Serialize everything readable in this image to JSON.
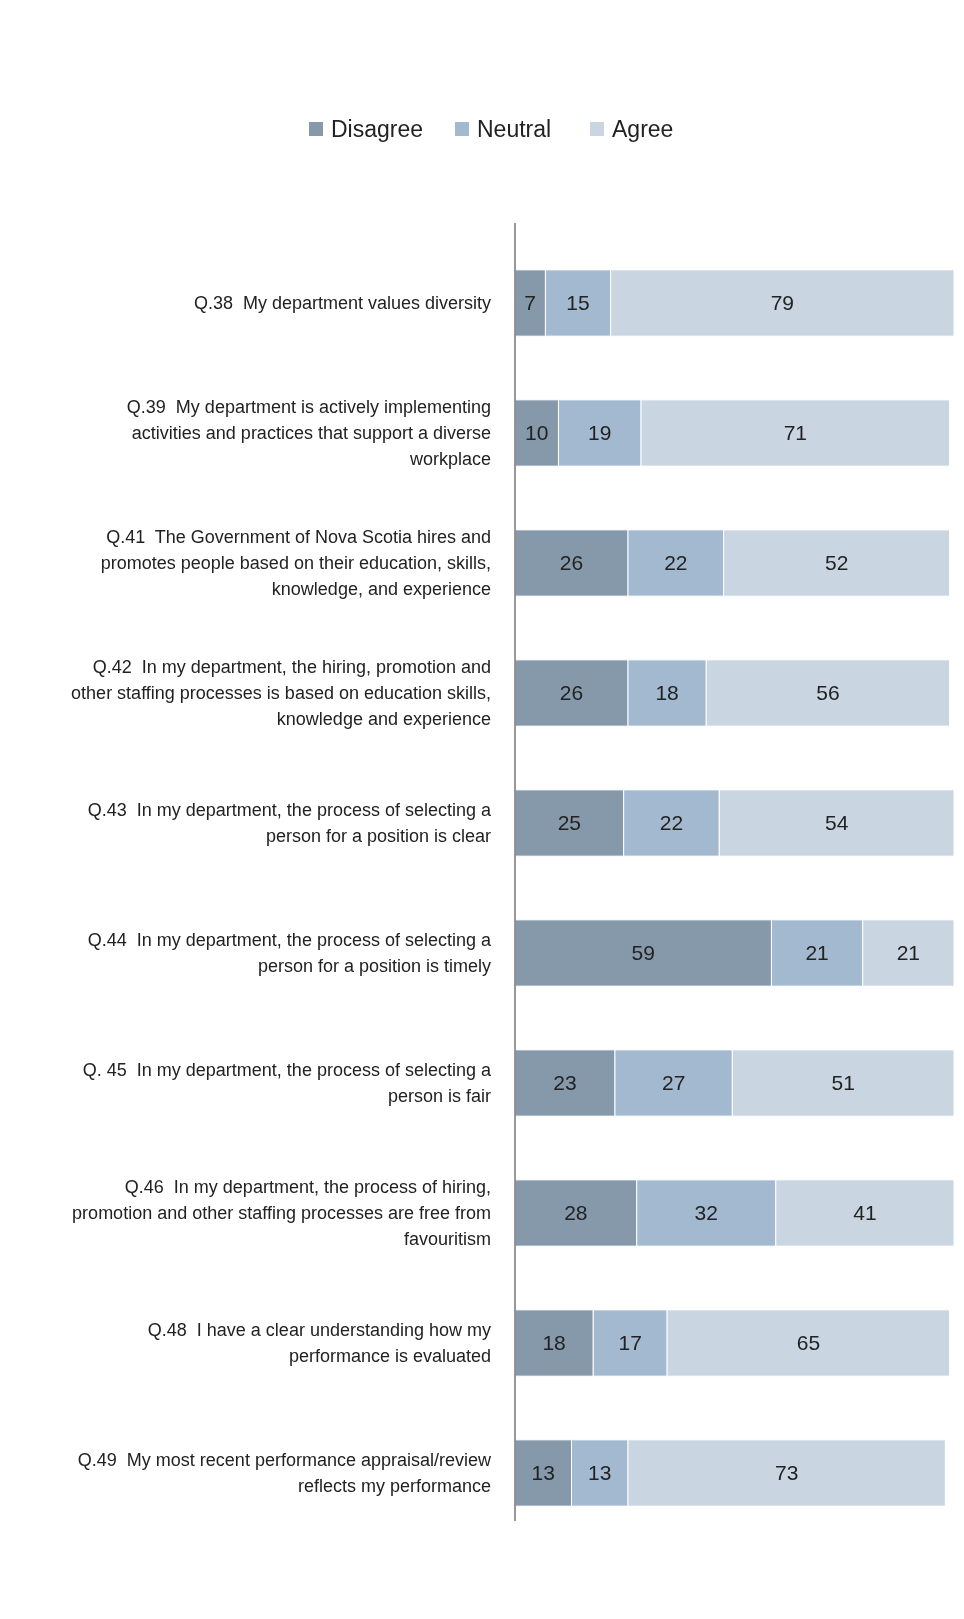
{
  "chart_data": {
    "type": "bar",
    "orientation": "horizontal",
    "stacked": true,
    "data_labels": true,
    "legend": "top",
    "categories": [
      "Q.38  My department values diversity",
      "Q.39  My department is actively implementing activities and practices that support a diverse workplace",
      "Q.41  The Government of Nova Scotia hires and promotes people based on their education, skills, knowledge, and experience",
      "Q.42  In my department, the hiring, promotion and other staffing processes is based on education skills, knowledge and experience",
      "Q.43  In my department, the process of selecting a person for a position is clear",
      "Q.44  In my department, the process of selecting a person for a position is timely",
      "Q. 45  In my department, the process of selecting a person is fair",
      "Q.46  In my department, the process of hiring, promotion and other staffing processes are free from favouritism",
      "Q.48  I have a clear understanding how my performance is evaluated",
      "Q.49  My most recent performance appraisal/review reflects my performance"
    ],
    "series": [
      {
        "name": "Disagree",
        "color": "#8699ab",
        "values": [
          7,
          10,
          26,
          26,
          25,
          59,
          23,
          28,
          18,
          13
        ]
      },
      {
        "name": "Neutral",
        "color": "#a3b9cf",
        "values": [
          15,
          19,
          22,
          18,
          22,
          21,
          27,
          32,
          17,
          13
        ]
      },
      {
        "name": "Agree",
        "color": "#c9d5e1",
        "values": [
          79,
          71,
          52,
          56,
          54,
          21,
          51,
          41,
          65,
          73
        ]
      }
    ]
  }
}
